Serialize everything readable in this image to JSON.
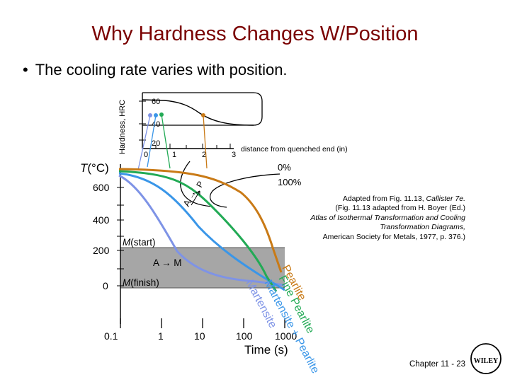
{
  "slide": {
    "title": "Why Hardness Changes W/Position",
    "bullet": "The cooling rate varies with position.",
    "bullet_symbol": "•"
  },
  "hardness_plot": {
    "ylabel": "Hardness, HRC",
    "y_ticks": [
      "60",
      "40",
      "20"
    ],
    "x_ticks": [
      "0",
      "1",
      "2",
      "3"
    ],
    "xlabel": "distance from quenched end (in)"
  },
  "ttt_diagram": {
    "ylabel_symbol": "T",
    "ylabel_unit": "(°C)",
    "y_ticks": [
      "600",
      "400",
      "200",
      "0"
    ],
    "x_ticks": [
      "0.1",
      "1",
      "10",
      "100",
      "1000"
    ],
    "xlabel": "Time (s)",
    "labels": {
      "pct_0": "0%",
      "pct_100": "100%",
      "a_arrow": "A →",
      "p": "P",
      "m_start_sym": "M",
      "m_start_txt": "(start)",
      "m_finish_sym": "M",
      "m_finish_txt": "(finish)",
      "a_to_m": "A → M",
      "pearlite": "Pearlite",
      "fine_pearlite": "Fine Pearlite",
      "martensite_pearlite": "Martensite + Pearlite",
      "martensite": "Martensite"
    },
    "colors": {
      "martensite": "#7e93e6",
      "martensite_pearlite": "#3a96e8",
      "fine_pearlite": "#22aa55",
      "pearlite": "#c97a16"
    }
  },
  "credit": {
    "line1": "Adapted from Fig. 11.13, ",
    "line1_italic": "Callister 7e.",
    "line2": "(Fig. 11.13 adapted from H. Boyer (Ed.)",
    "line3": "Atlas of Isothermal Transformation and Cooling Transformation Diagrams,",
    "line4": "American Society for Metals, 1977, p. 376.)"
  },
  "footer": {
    "chapter": "Chapter 11 - 23",
    "logo_letters": "WILEY"
  }
}
